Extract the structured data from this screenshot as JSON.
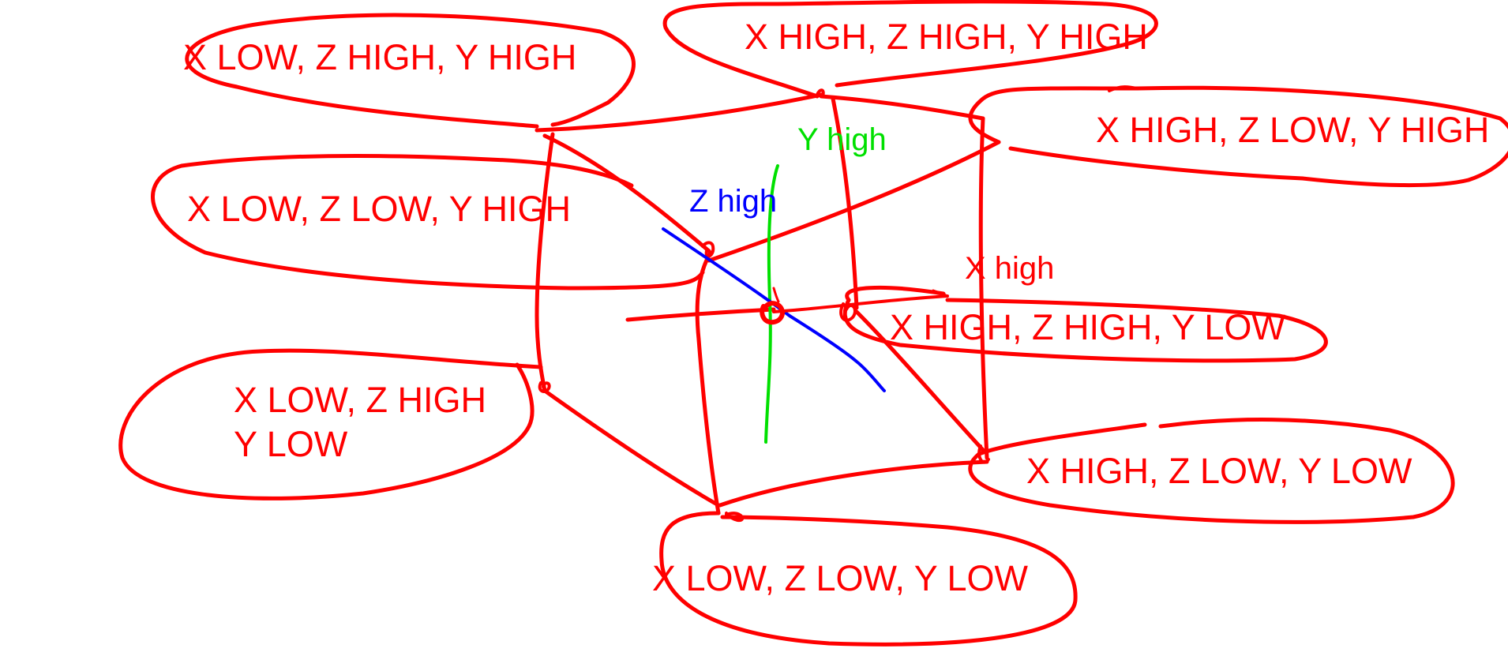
{
  "colors": {
    "background": "#ffffff",
    "ink_red": "#ff0000",
    "axis_x": "#ff0000",
    "axis_y": "#00e000",
    "axis_z": "#0000ff"
  },
  "axis_labels": {
    "x": "X high",
    "y": "Y high",
    "z": "Z high"
  },
  "corner_labels": {
    "xlow_zhigh_yhigh": "X LOW, Z HIGH, Y HIGH",
    "xhigh_zhigh_yhigh": "X HIGH, Z HIGH, Y HIGH",
    "xhigh_zlow_yhigh": "X HIGH, Z LOW, Y HIGH",
    "xlow_zlow_yhigh": "X LOW, Z LOW, Y HIGH",
    "xhigh_zhigh_ylow": "X HIGH, Z HIGH, Y LOW",
    "xlow_zhigh_ylow_line1": "X LOW, Z HIGH",
    "xlow_zhigh_ylow_line2": "Y LOW",
    "xhigh_zlow_ylow": "X HIGH, Z LOW, Y LOW",
    "xlow_zlow_ylow": "X LOW, Z LOW, Y LOW"
  }
}
